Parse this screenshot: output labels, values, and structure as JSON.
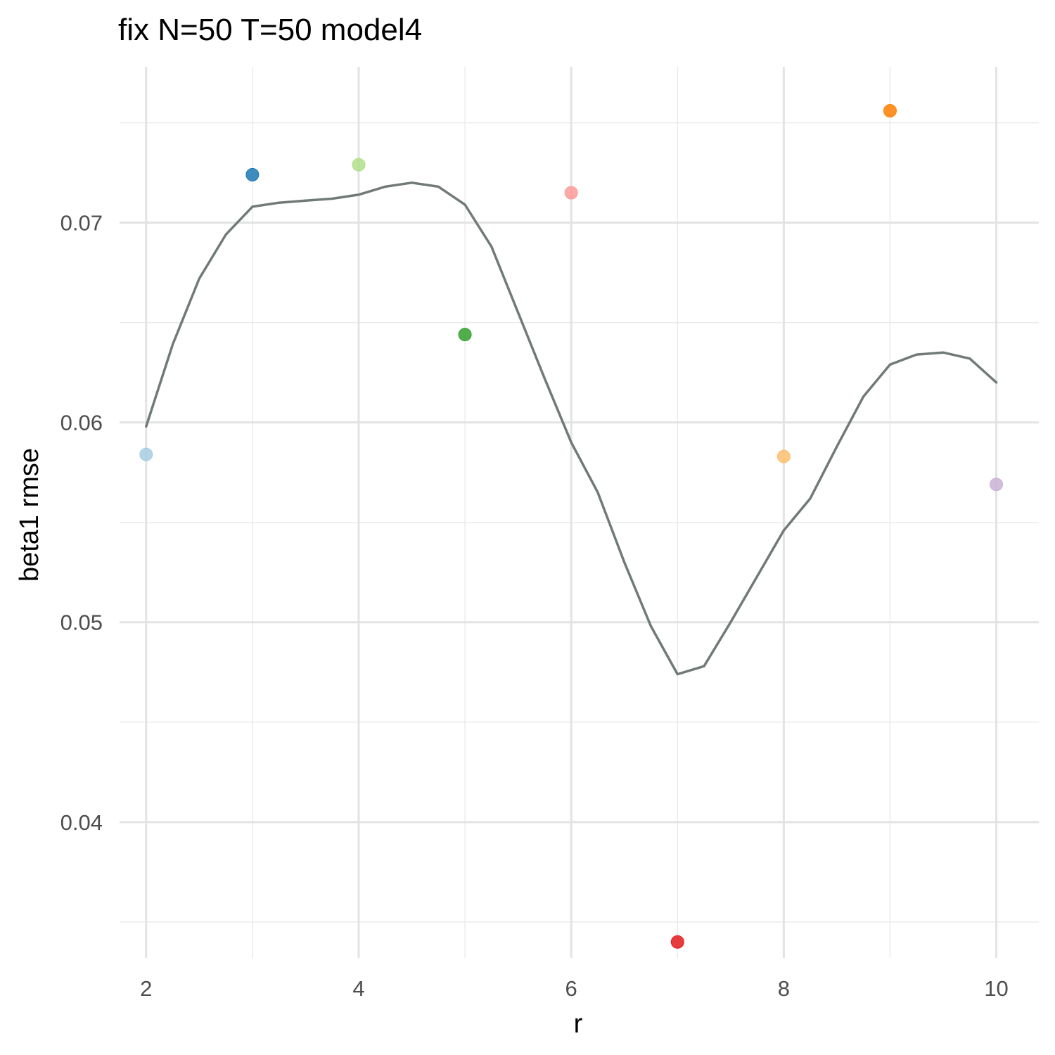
{
  "chart_data": {
    "type": "scatter",
    "title": "fix N=50 T=50 model4",
    "xlabel": "r",
    "ylabel": "beta1 rmse",
    "xlim": [
      1.75,
      10.4
    ],
    "ylim": [
      0.0332,
      0.0778
    ],
    "xticks": [
      2,
      4,
      6,
      8,
      10
    ],
    "xtick_labels": [
      "2",
      "4",
      "6",
      "8",
      "10"
    ],
    "yticks": [
      0.04,
      0.05,
      0.06,
      0.07
    ],
    "ytick_labels": [
      "0.04",
      "0.05",
      "0.06",
      "0.07"
    ],
    "grid": true,
    "legend": "none",
    "points": [
      {
        "x": 2,
        "y": 0.0584,
        "color": "#A6CEE3"
      },
      {
        "x": 3,
        "y": 0.0724,
        "color": "#1F78B4"
      },
      {
        "x": 4,
        "y": 0.0729,
        "color": "#B2DF8A"
      },
      {
        "x": 5,
        "y": 0.0644,
        "color": "#33A02C"
      },
      {
        "x": 6,
        "y": 0.0715,
        "color": "#FB9A99"
      },
      {
        "x": 7,
        "y": 0.034,
        "color": "#E31A1C"
      },
      {
        "x": 8,
        "y": 0.0583,
        "color": "#FDBF6F"
      },
      {
        "x": 9,
        "y": 0.0756,
        "color": "#FF7F00"
      },
      {
        "x": 10,
        "y": 0.0569,
        "color": "#CAB2D6"
      }
    ],
    "smooth_line": {
      "color": "#717a78",
      "x": [
        2.0,
        2.25,
        2.5,
        2.75,
        3.0,
        3.25,
        3.5,
        3.75,
        4.0,
        4.25,
        4.5,
        4.75,
        5.0,
        5.25,
        5.5,
        5.75,
        6.0,
        6.25,
        6.5,
        6.75,
        7.0,
        7.25,
        7.5,
        7.75,
        8.0,
        8.25,
        8.5,
        8.75,
        9.0,
        9.25,
        9.5,
        9.75,
        10.0
      ],
      "y": [
        0.0598,
        0.0639,
        0.0672,
        0.0694,
        0.0708,
        0.071,
        0.0711,
        0.0712,
        0.0714,
        0.0718,
        0.072,
        0.0718,
        0.0709,
        0.0688,
        0.0655,
        0.0622,
        0.059,
        0.0565,
        0.053,
        0.0498,
        0.0474,
        0.0478,
        0.05,
        0.0523,
        0.0546,
        0.0562,
        0.0588,
        0.0613,
        0.0629,
        0.0634,
        0.0635,
        0.0632,
        0.062
      ]
    }
  }
}
